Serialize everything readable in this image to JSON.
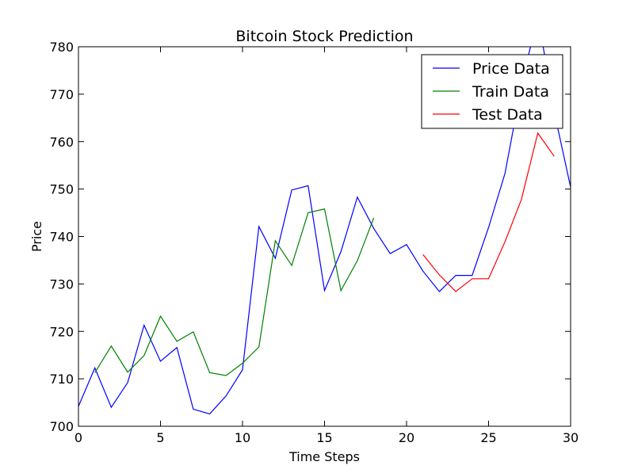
{
  "chart_data": {
    "type": "line",
    "title": "Bitcoin Stock Prediction",
    "xlabel": "Time Steps",
    "ylabel": "Price",
    "xlim": [
      0,
      30
    ],
    "ylim": [
      700,
      780
    ],
    "xticks": [
      0,
      5,
      10,
      15,
      20,
      25,
      30
    ],
    "yticks": [
      700,
      710,
      720,
      730,
      740,
      750,
      760,
      770,
      780
    ],
    "grid": false,
    "legend_position": "top-right",
    "series": [
      {
        "name": "Price Data",
        "color": "#0000ff",
        "x": [
          0,
          1,
          2,
          3,
          4,
          5,
          6,
          7,
          8,
          9,
          10,
          11,
          12,
          13,
          14,
          15,
          16,
          17,
          18,
          19,
          20,
          21,
          22,
          23,
          24,
          25,
          26,
          27,
          28,
          29,
          30
        ],
        "y": [
          704.2,
          712.3,
          704.0,
          709.2,
          721.3,
          713.7,
          716.6,
          703.6,
          702.6,
          706.4,
          711.9,
          742.1,
          735.4,
          749.8,
          750.7,
          728.6,
          736.8,
          748.3,
          741.7,
          736.4,
          738.3,
          732.7,
          728.4,
          731.8,
          731.8,
          741.9,
          753.3,
          771.7,
          786.7,
          766.3,
          750.4
        ]
      },
      {
        "name": "Train Data",
        "color": "#008000",
        "x": [
          1,
          2,
          3,
          4,
          5,
          6,
          7,
          8,
          9,
          10,
          11,
          12,
          13,
          14,
          15,
          16,
          17,
          18
        ],
        "y": [
          711.3,
          716.9,
          711.4,
          714.9,
          723.2,
          717.9,
          719.9,
          711.3,
          710.7,
          713.3,
          716.7,
          739.1,
          733.9,
          745.0,
          745.8,
          728.6,
          734.9,
          743.9
        ]
      },
      {
        "name": "Test Data",
        "color": "#ff0000",
        "x": [
          21,
          22,
          23,
          24,
          25,
          26,
          27,
          28,
          29
        ],
        "y": [
          736.2,
          731.9,
          728.4,
          731.1,
          731.1,
          738.9,
          747.8,
          761.8,
          756.9
        ]
      }
    ]
  }
}
